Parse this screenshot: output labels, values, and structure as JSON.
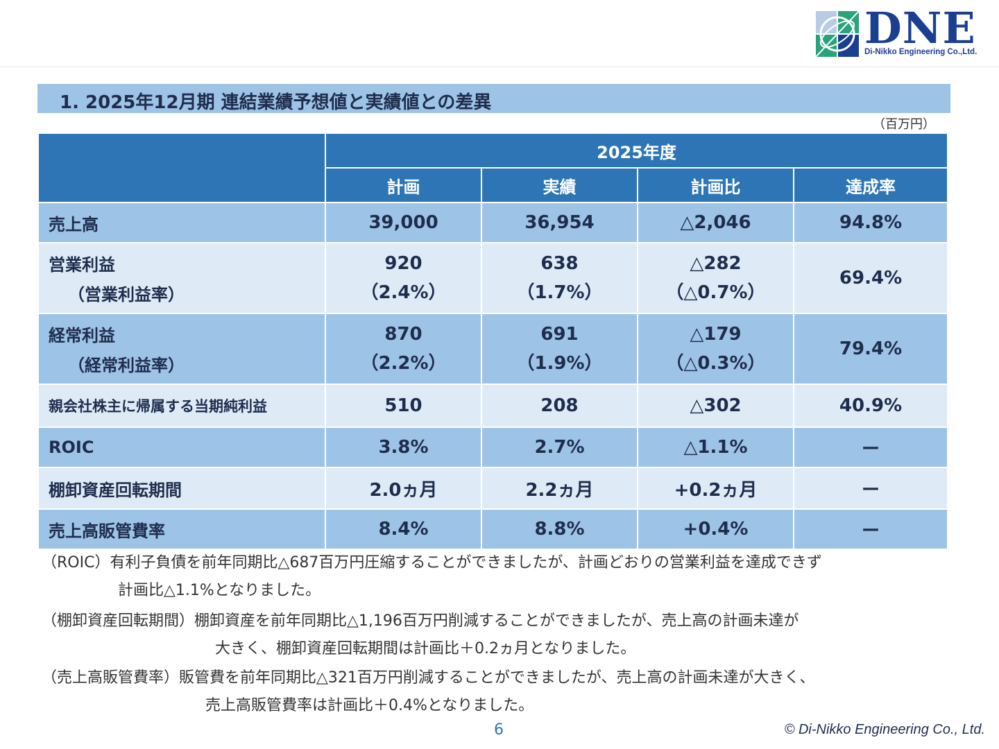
{
  "logo": {
    "brand": "DNE",
    "tagline": "Di-Nikko Engineering Co.,Ltd."
  },
  "title": "1.  2025年12月期  連結業績予想値と実績値との差異",
  "unit": "（百万円）",
  "table": {
    "year_header": "2025年度",
    "columns": [
      "計画",
      "実績",
      "計画比",
      "達成率"
    ],
    "rows": [
      {
        "label": "売上高",
        "cells": [
          "39,000",
          "36,954",
          "△2,046",
          "94.8%"
        ]
      },
      {
        "label": "営業利益",
        "sublabel": "（営業利益率）",
        "cells": [
          "920",
          "638",
          "△282",
          "69.4%"
        ],
        "subcells": [
          "（2.4%）",
          "（1.7%）",
          "（△0.7%）"
        ]
      },
      {
        "label": "経常利益",
        "sublabel": "（経常利益率）",
        "cells": [
          "870",
          "691",
          "△179",
          "79.4%"
        ],
        "subcells": [
          "（2.2%）",
          "（1.9%）",
          "（△0.3%）"
        ]
      },
      {
        "label": "親会社株主に帰属する当期純利益",
        "cells": [
          "510",
          "208",
          "△302",
          "40.9%"
        ]
      },
      {
        "label": "ROIC",
        "cells": [
          "3.8%",
          "2.7%",
          "△1.1%",
          "ー"
        ]
      },
      {
        "label": "棚卸資産回転期間",
        "cells": [
          "2.0ヵ月",
          "2.2ヵ月",
          "+0.2ヵ月",
          "ー"
        ]
      },
      {
        "label": "売上高販管費率",
        "cells": [
          "8.4%",
          "8.8%",
          "+0.4%",
          "ー"
        ]
      }
    ]
  },
  "notes": [
    {
      "line1": "（ROIC）有利子負債を前年同期比△687百万円圧縮することができましたが、計画どおりの営業利益を達成できず",
      "line2": "計画比△1.1%となりました。"
    },
    {
      "line1": "（棚卸資産回転期間）棚卸資産を前年同期比△1,196百万円削減することができましたが、売上高の計画未達が",
      "line2": "大きく、棚卸資産回転期間は計画比＋0.2ヵ月となりました。"
    },
    {
      "line1": "（売上高販管費率）販管費を前年同期比△321百万円削減することができましたが、売上高の計画未達が大きく、",
      "line2": "売上高販管費率は計画比＋0.4%となりました。"
    }
  ],
  "page_number": "6",
  "copyright": "© Di-Nikko Engineering Co., Ltd."
}
